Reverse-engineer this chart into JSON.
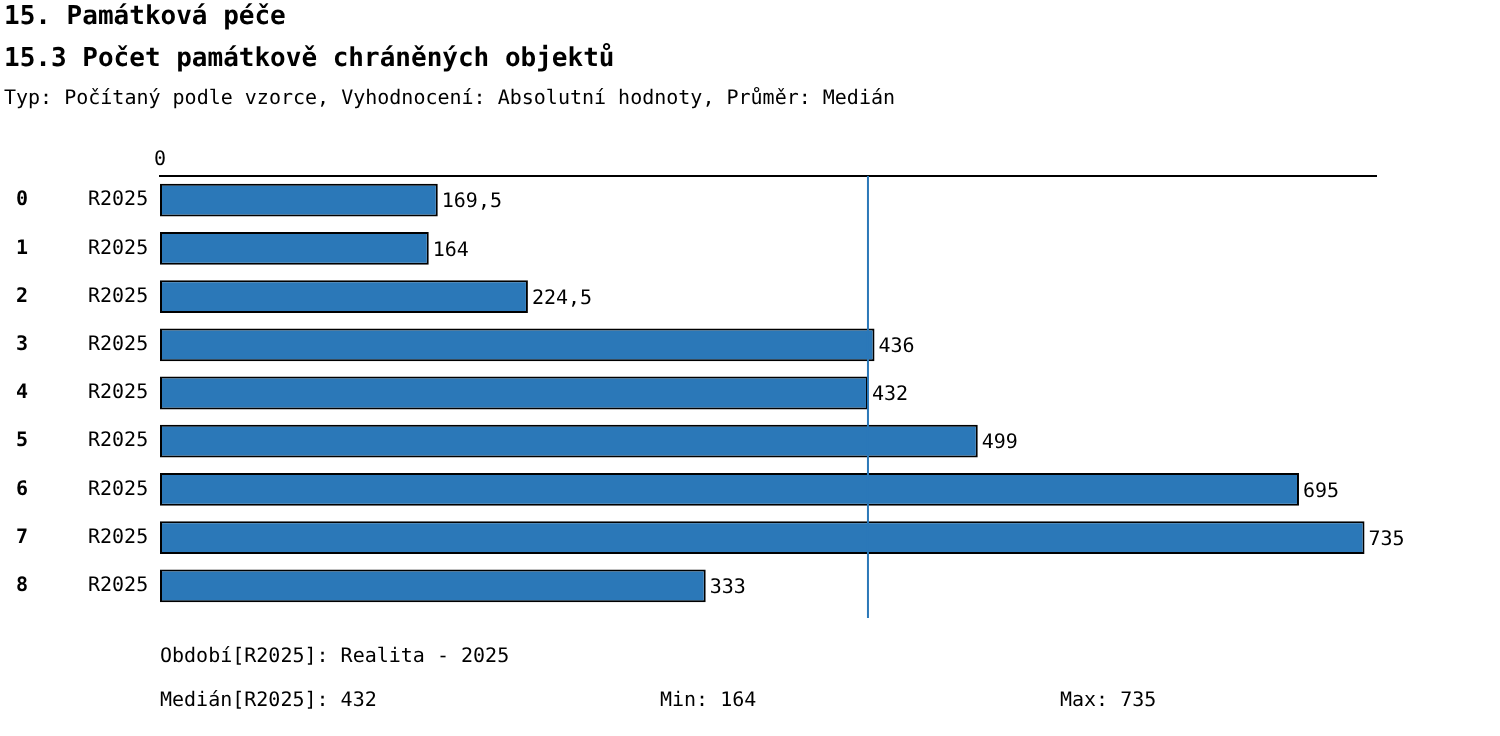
{
  "chart_data": {
    "type": "bar",
    "orientation": "horizontal",
    "title": "15. Památková péče",
    "subtitle": "15.3 Počet památkově chráněných objektů",
    "annotations": [
      "0",
      "Typ: Počítaný podle vzorce, Vyhodnocení: Absolutní hodnoty, Průměr: Medián",
      "Období[R2025]: Realita - 2025",
      "Medián[R2025]: 432",
      "Min: 164",
      "Max: 735"
    ],
    "categories": [
      "0",
      "1",
      "2",
      "3",
      "4",
      "5",
      "6",
      "7",
      "8"
    ],
    "y2_categories": [
      "R2025",
      "R2025",
      "R2025",
      "R2025",
      "R2025",
      "R2025",
      "R2025",
      "R2025",
      "R2025"
    ],
    "values": [
      169.5,
      164,
      224.5,
      436,
      432,
      499,
      695,
      735,
      333
    ],
    "color": "#2b78b8",
    "value_labels": [
      "169,5",
      "164",
      "224,5",
      "436",
      "432",
      "499",
      "695",
      "735",
      "333"
    ],
    "xlim": [
      0,
      742
    ],
    "ref_lines": [
      {
        "axis": "x",
        "value": 432,
        "color": "#2b78b8"
      }
    ],
    "grid": false,
    "legend": false
  }
}
